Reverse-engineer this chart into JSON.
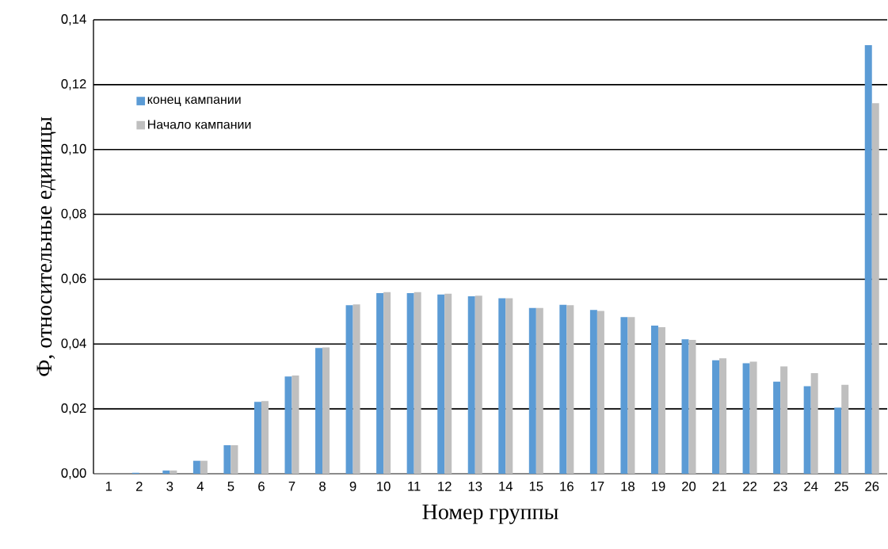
{
  "chart_data": {
    "type": "bar",
    "xlabel": "Номер группы",
    "ylabel": "Ф, относительные единицы",
    "categories": [
      "1",
      "2",
      "3",
      "4",
      "5",
      "6",
      "7",
      "8",
      "9",
      "10",
      "11",
      "12",
      "13",
      "14",
      "15",
      "16",
      "17",
      "18",
      "19",
      "20",
      "21",
      "22",
      "23",
      "24",
      "25",
      "26"
    ],
    "series": [
      {
        "name": "конец кампании",
        "color": "#5b9bd5",
        "values": [
          null,
          0.0003,
          0.001,
          0.004,
          0.0088,
          0.0222,
          0.03,
          0.0388,
          0.052,
          0.0557,
          0.0557,
          0.0553,
          0.0547,
          0.0541,
          0.0511,
          0.0521,
          0.0505,
          0.0483,
          0.0457,
          0.0415,
          0.035,
          0.0341,
          0.0284,
          0.027,
          0.0204,
          0.1322
        ]
      },
      {
        "name": "Начало кампании",
        "color": "#bfbfbf",
        "values": [
          null,
          null,
          0.001,
          0.004,
          0.0088,
          0.0224,
          0.0303,
          0.039,
          0.0522,
          0.056,
          0.056,
          0.0555,
          0.0549,
          0.0541,
          0.0511,
          0.052,
          0.0502,
          0.0483,
          0.0452,
          0.0413,
          0.0356,
          0.0346,
          0.0331,
          0.031,
          0.0274,
          0.1143
        ]
      }
    ],
    "ylim": [
      0,
      0.14
    ],
    "yticks": [
      {
        "value": 0,
        "label": "0,00"
      },
      {
        "value": 0.02,
        "label": "0,02"
      },
      {
        "value": 0.04,
        "label": "0,04"
      },
      {
        "value": 0.06,
        "label": "0,06"
      },
      {
        "value": 0.08,
        "label": "0,08"
      },
      {
        "value": 0.1,
        "label": "0,10"
      },
      {
        "value": 0.12,
        "label": "0,12"
      },
      {
        "value": 0.14,
        "label": "0,14"
      }
    ],
    "grid": "y",
    "legend": "top left"
  }
}
